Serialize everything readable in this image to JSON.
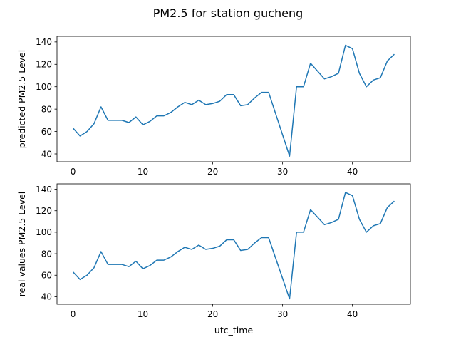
{
  "figure": {
    "title": "PM2.5 for station gucheng"
  },
  "chart_data": [
    {
      "type": "line",
      "xlabel": "",
      "ylabel": "predicted PM2.5 Level",
      "xlim": [
        -2.3,
        48.3
      ],
      "ylim": [
        33,
        145
      ],
      "xticks": [
        0,
        10,
        20,
        30,
        40
      ],
      "yticks": [
        40,
        60,
        80,
        100,
        120,
        140
      ],
      "grid": false,
      "line_color": "#1f77b4",
      "series": [
        {
          "values": [
            63,
            56,
            60,
            67,
            82,
            70,
            70,
            70,
            68,
            73,
            66,
            69,
            74,
            74,
            77,
            82,
            86,
            84,
            88,
            84,
            85,
            87,
            93,
            93,
            83,
            84,
            90,
            95,
            95,
            76,
            57,
            38,
            100,
            100,
            121,
            114,
            107,
            109,
            112,
            137,
            134,
            112,
            100,
            106,
            108,
            123,
            129
          ]
        }
      ]
    },
    {
      "type": "line",
      "xlabel": "utc_time",
      "ylabel": "real values PM2.5 Level",
      "xlim": [
        -2.3,
        48.3
      ],
      "ylim": [
        33,
        145
      ],
      "xticks": [
        0,
        10,
        20,
        30,
        40
      ],
      "yticks": [
        40,
        60,
        80,
        100,
        120,
        140
      ],
      "grid": false,
      "line_color": "#1f77b4",
      "series": [
        {
          "values": [
            63,
            56,
            60,
            67,
            82,
            70,
            70,
            70,
            68,
            73,
            66,
            69,
            74,
            74,
            77,
            82,
            86,
            84,
            88,
            84,
            85,
            87,
            93,
            93,
            83,
            84,
            90,
            95,
            95,
            76,
            57,
            38,
            100,
            100,
            121,
            114,
            107,
            109,
            112,
            137,
            134,
            112,
            100,
            106,
            108,
            123,
            129
          ]
        }
      ]
    }
  ]
}
